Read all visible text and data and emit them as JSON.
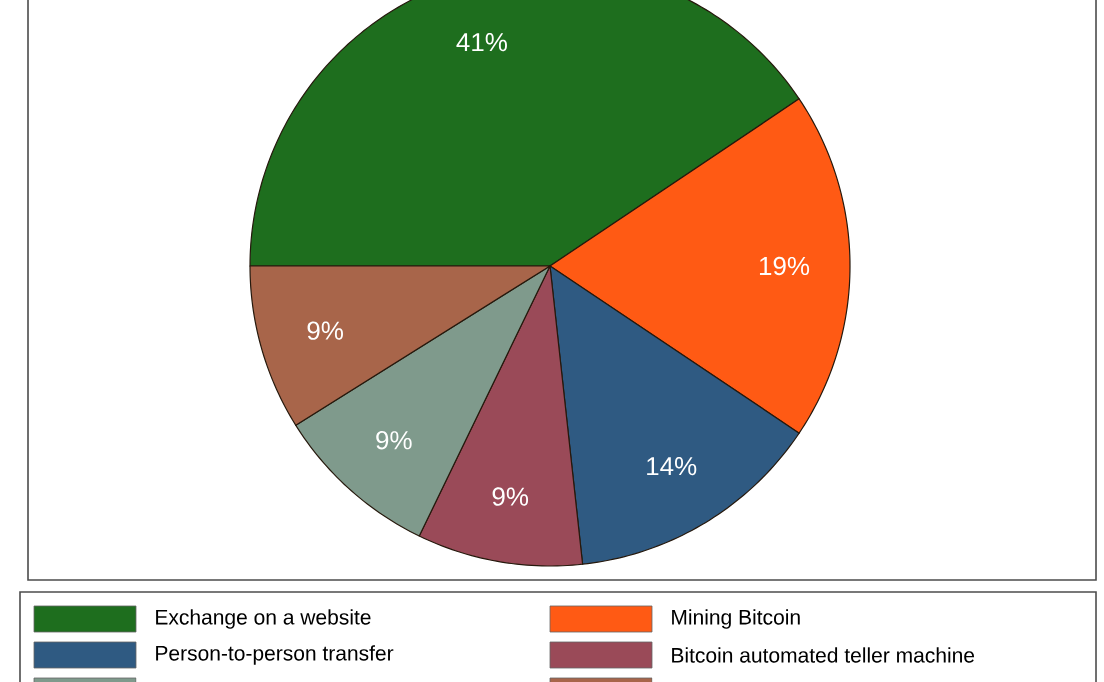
{
  "chart_data": {
    "type": "pie",
    "categories": [
      "Exchange on a website",
      "Mining Bitcoin",
      "Person-to-person transfer",
      "Bitcoin automated teller machine",
      null,
      null
    ],
    "values": [
      41,
      19,
      14,
      9,
      9,
      9
    ],
    "colors": [
      "#1e6e1e",
      "#ff5a14",
      "#2f5a82",
      "#9a4a58",
      "#7f9a8c",
      "#a8654a"
    ],
    "value_labels": [
      "41%",
      "19%",
      "14%",
      "9%",
      "9%",
      "9%"
    ],
    "legend": "bottom"
  }
}
